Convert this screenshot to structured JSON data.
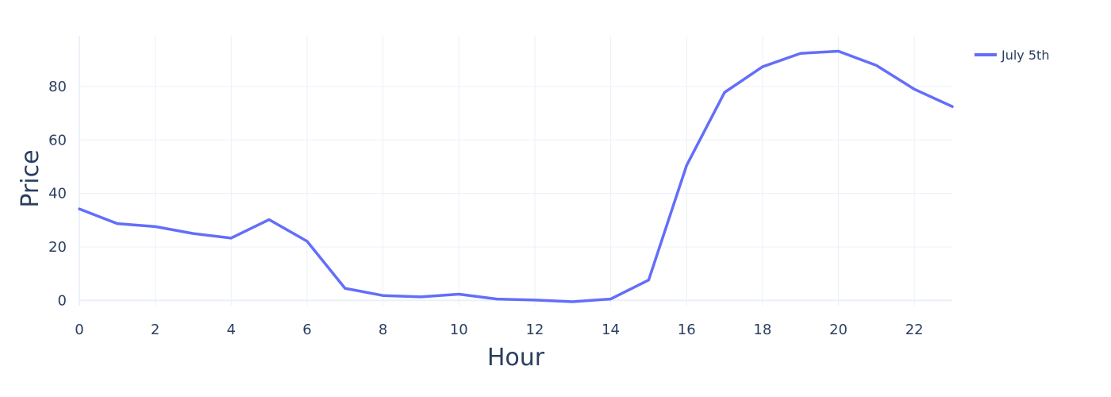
{
  "chart_data": {
    "type": "line",
    "title": "",
    "xlabel": "Hour",
    "ylabel": "Price",
    "xlim": [
      0,
      23
    ],
    "ylim": [
      -2,
      99
    ],
    "xticks": [
      0,
      2,
      4,
      6,
      8,
      10,
      12,
      14,
      16,
      18,
      20,
      22
    ],
    "yticks": [
      0,
      20,
      40,
      60,
      80
    ],
    "grid": true,
    "legend_position": "top-right",
    "series": [
      {
        "name": "July 5th",
        "color": "#636efa",
        "x": [
          0,
          1,
          2,
          3,
          4,
          5,
          6,
          7,
          8,
          9,
          10,
          11,
          12,
          13,
          14,
          15,
          16,
          17,
          18,
          19,
          20,
          21,
          22,
          23
        ],
        "y": [
          34.2,
          28.7,
          27.6,
          25.0,
          23.3,
          30.2,
          22.1,
          4.5,
          1.8,
          1.3,
          2.3,
          0.5,
          0.1,
          -0.5,
          0.5,
          7.6,
          50.5,
          77.8,
          87.4,
          92.4,
          93.2,
          87.9,
          79.0,
          72.5
        ]
      }
    ]
  }
}
